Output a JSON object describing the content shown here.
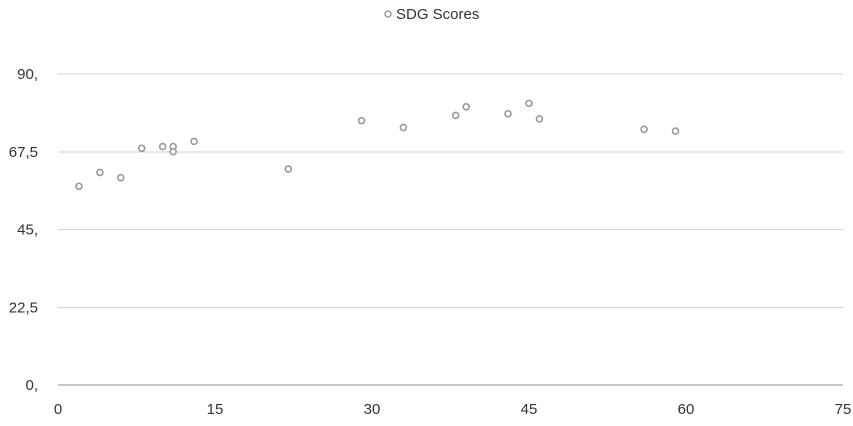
{
  "chart_data": {
    "type": "scatter",
    "title": "",
    "xlabel": "",
    "ylabel": "",
    "xlim": [
      0,
      75
    ],
    "ylim": [
      0,
      90
    ],
    "x_ticks": [
      0,
      15,
      30,
      45,
      60,
      75
    ],
    "x_tick_labels": [
      "0",
      "15",
      "30",
      "45",
      "60",
      "75"
    ],
    "y_ticks": [
      0,
      22.5,
      45,
      67.5,
      90
    ],
    "y_tick_labels": [
      "0,",
      "22,5",
      "45,",
      "67,5",
      "90,"
    ],
    "grid": true,
    "legend": {
      "position": "top-center"
    },
    "series": [
      {
        "name": "SDG Scores",
        "color": "#999999",
        "marker": "hollow-circle",
        "points": [
          {
            "x": 2,
            "y": 57.5
          },
          {
            "x": 4,
            "y": 61.5
          },
          {
            "x": 6,
            "y": 60
          },
          {
            "x": 8,
            "y": 68.5
          },
          {
            "x": 10,
            "y": 69
          },
          {
            "x": 11,
            "y": 69
          },
          {
            "x": 11,
            "y": 67.5
          },
          {
            "x": 13,
            "y": 70.5
          },
          {
            "x": 22,
            "y": 62.5
          },
          {
            "x": 29,
            "y": 76.5
          },
          {
            "x": 33,
            "y": 74.5
          },
          {
            "x": 38,
            "y": 78
          },
          {
            "x": 39,
            "y": 80.5
          },
          {
            "x": 43,
            "y": 78.5
          },
          {
            "x": 45,
            "y": 81.5
          },
          {
            "x": 46,
            "y": 77
          },
          {
            "x": 56,
            "y": 74
          },
          {
            "x": 59,
            "y": 73.5
          }
        ]
      }
    ]
  }
}
